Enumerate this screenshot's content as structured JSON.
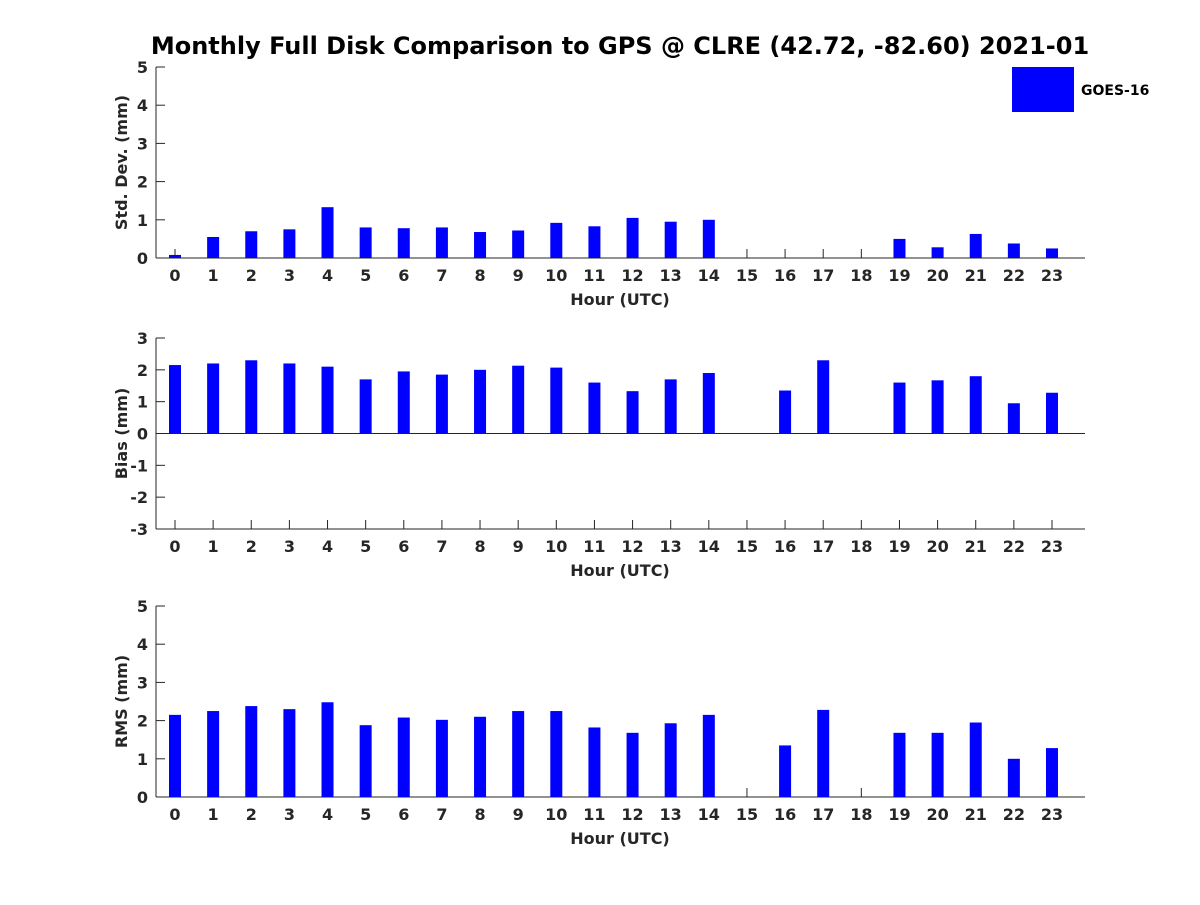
{
  "title": "Monthly Full Disk Comparison to GPS @ CLRE (42.72, -82.60) 2021-01",
  "legend": {
    "label": "GOES-16",
    "color": "#0000ff"
  },
  "chart_data": [
    {
      "type": "bar",
      "ylabel": "Std. Dev. (mm)",
      "xlabel": "Hour (UTC)",
      "ylim": [
        0,
        5
      ],
      "yticks": [
        0,
        1,
        2,
        3,
        4,
        5
      ],
      "categories": [
        "0",
        "1",
        "2",
        "3",
        "4",
        "5",
        "6",
        "7",
        "8",
        "9",
        "10",
        "11",
        "12",
        "13",
        "14",
        "15",
        "16",
        "17",
        "18",
        "19",
        "20",
        "21",
        "22",
        "23"
      ],
      "series": [
        {
          "name": "GOES-16",
          "color": "#0000ff",
          "values": [
            0.08,
            0.55,
            0.7,
            0.75,
            1.33,
            0.8,
            0.78,
            0.8,
            0.68,
            0.72,
            0.92,
            0.83,
            1.05,
            0.95,
            1.0,
            null,
            null,
            null,
            null,
            0.5,
            0.28,
            0.63,
            0.38,
            0.25
          ]
        }
      ]
    },
    {
      "type": "bar",
      "ylabel": "Bias (mm)",
      "xlabel": "Hour (UTC)",
      "ylim": [
        -3,
        3
      ],
      "yticks": [
        -3,
        -2,
        -1,
        0,
        1,
        2,
        3
      ],
      "categories": [
        "0",
        "1",
        "2",
        "3",
        "4",
        "5",
        "6",
        "7",
        "8",
        "9",
        "10",
        "11",
        "12",
        "13",
        "14",
        "15",
        "16",
        "17",
        "18",
        "19",
        "20",
        "21",
        "22",
        "23"
      ],
      "series": [
        {
          "name": "GOES-16",
          "color": "#0000ff",
          "values": [
            2.15,
            2.2,
            2.3,
            2.2,
            2.1,
            1.7,
            1.95,
            1.85,
            2.0,
            2.13,
            2.07,
            1.6,
            1.33,
            1.7,
            1.9,
            null,
            1.35,
            2.3,
            null,
            1.6,
            1.67,
            1.8,
            0.95,
            1.28
          ]
        }
      ]
    },
    {
      "type": "bar",
      "ylabel": "RMS (mm)",
      "xlabel": "Hour (UTC)",
      "ylim": [
        0,
        5
      ],
      "yticks": [
        0,
        1,
        2,
        3,
        4,
        5
      ],
      "categories": [
        "0",
        "1",
        "2",
        "3",
        "4",
        "5",
        "6",
        "7",
        "8",
        "9",
        "10",
        "11",
        "12",
        "13",
        "14",
        "15",
        "16",
        "17",
        "18",
        "19",
        "20",
        "21",
        "22",
        "23"
      ],
      "series": [
        {
          "name": "GOES-16",
          "color": "#0000ff",
          "values": [
            2.15,
            2.25,
            2.38,
            2.3,
            2.48,
            1.88,
            2.08,
            2.02,
            2.1,
            2.25,
            2.25,
            1.82,
            1.68,
            1.93,
            2.15,
            null,
            1.35,
            2.28,
            null,
            1.68,
            1.68,
            1.95,
            1.0,
            1.28
          ]
        }
      ]
    }
  ]
}
